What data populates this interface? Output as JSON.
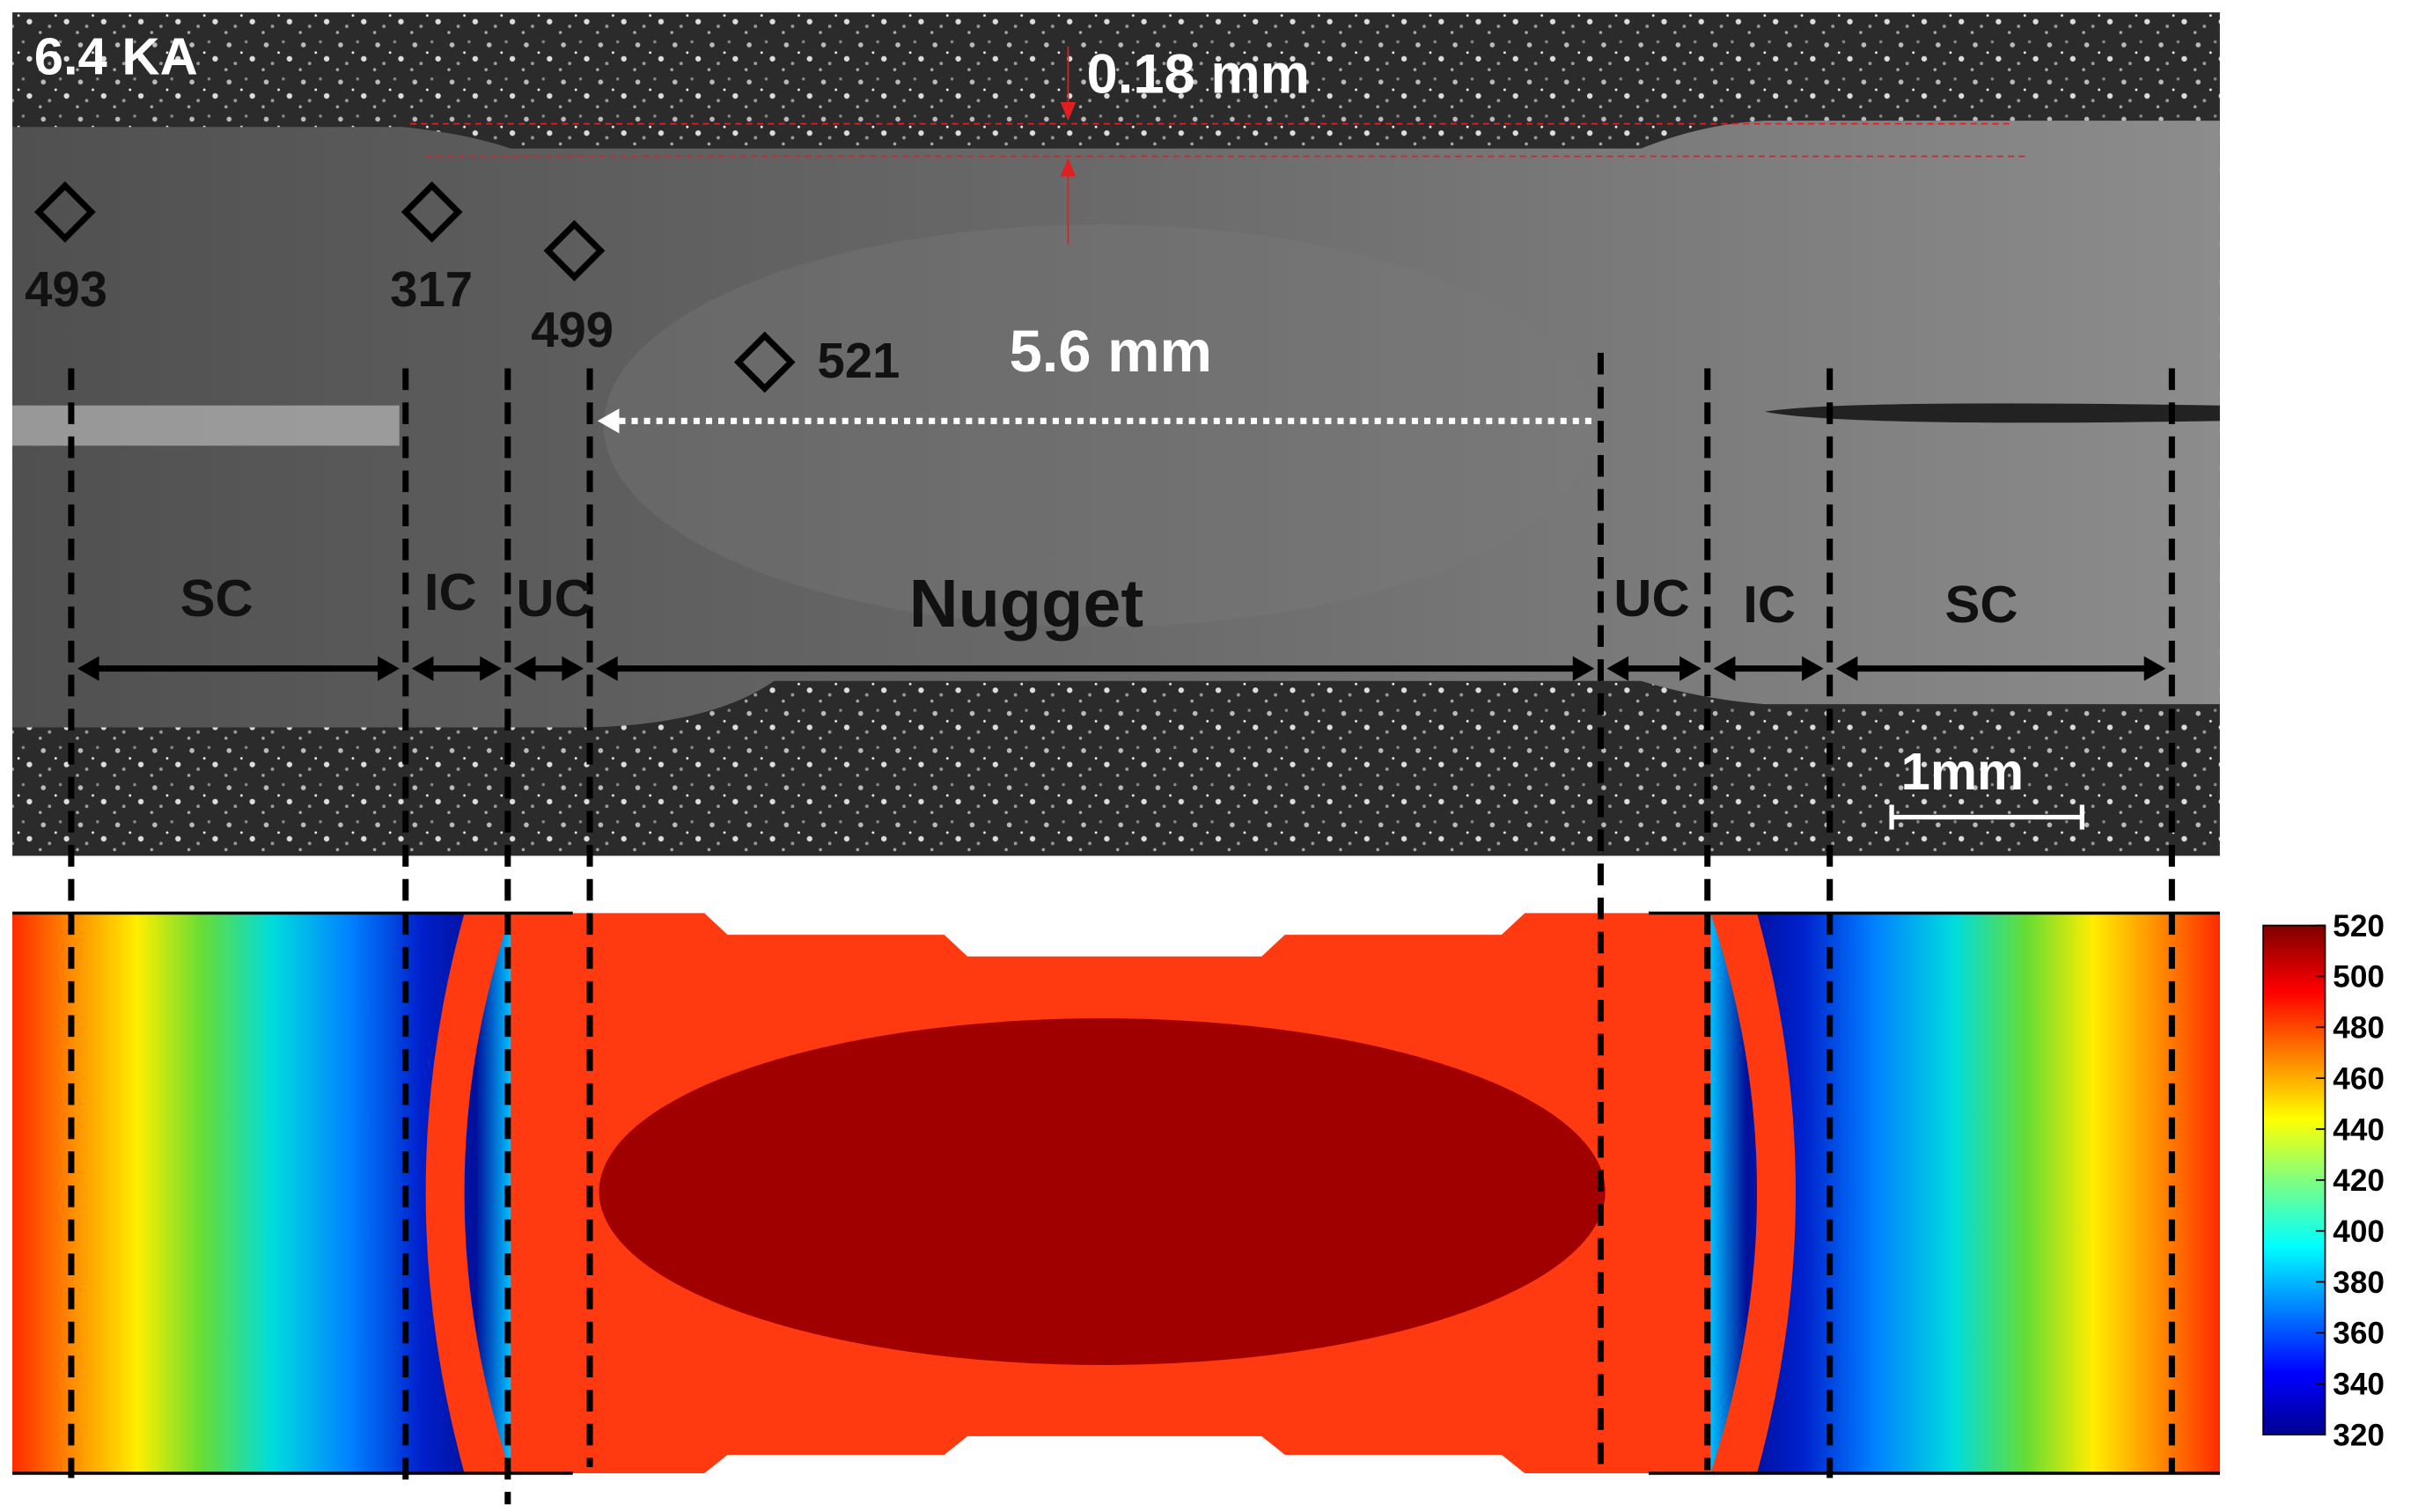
{
  "label": "6.4 KA",
  "dimensions": {
    "thickness_reduction": "0.18 mm",
    "nugget_width": "5.6 mm",
    "scale_bar": "1mm"
  },
  "hardness": [
    493,
    317,
    499,
    521
  ],
  "zones": [
    "SC",
    "IC",
    "UC",
    "Nugget",
    "UC",
    "IC",
    "SC"
  ],
  "colorbar": {
    "range": [
      320,
      520
    ],
    "ticks": [
      320,
      340,
      360,
      380,
      400,
      420,
      440,
      460,
      480,
      500,
      520
    ]
  }
}
